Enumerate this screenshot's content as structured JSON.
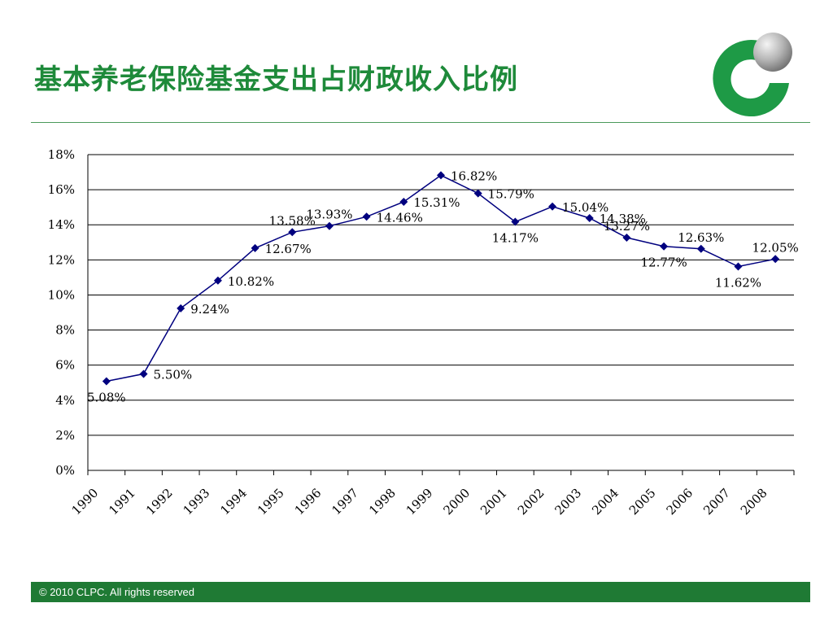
{
  "page": {
    "title": "基本养老保险基金支出占财政收入比例",
    "footer": "© 2010 CLPC. All rights reserved"
  },
  "logo": {
    "name": "clpc-logo",
    "color_green": "#1e9a46",
    "color_ball": "#9a9a9a"
  },
  "colors": {
    "line": "#00007f",
    "marker": "#00007f",
    "grid": "#000000",
    "title": "#1e8a3a",
    "footer_bg": "#1f7a34"
  },
  "chart_data": {
    "type": "line",
    "title": "",
    "xlabel": "",
    "ylabel": "",
    "categories": [
      "1990",
      "1991",
      "1992",
      "1993",
      "1994",
      "1995",
      "1996",
      "1997",
      "1998",
      "1999",
      "2000",
      "2001",
      "2002",
      "2003",
      "2004",
      "2005",
      "2006",
      "2007",
      "2008"
    ],
    "values": [
      5.08,
      5.5,
      9.24,
      10.82,
      12.67,
      13.58,
      13.93,
      14.46,
      15.31,
      16.82,
      15.79,
      14.17,
      15.04,
      14.38,
      13.27,
      12.77,
      12.63,
      11.62,
      12.05
    ],
    "data_labels": [
      "5.08%",
      "5.50%",
      "9.24%",
      "10.82%",
      "12.67%",
      "13.58%",
      "13.93%",
      "14.46%",
      "15.31%",
      "16.82%",
      "15.79%",
      "14.17%",
      "15.04%",
      "14.38%",
      "13.27%",
      "12.77%",
      "12.63%",
      "11.62%",
      "12.05%"
    ],
    "label_positions": [
      "below",
      "right",
      "right",
      "right",
      "right",
      "above",
      "above",
      "right",
      "right",
      "right",
      "right",
      "below",
      "right",
      "right",
      "above",
      "below",
      "above",
      "below",
      "above"
    ],
    "y_ticks": [
      0,
      2,
      4,
      6,
      8,
      10,
      12,
      14,
      16,
      18
    ],
    "y_tick_labels": [
      "0%",
      "2%",
      "4%",
      "6%",
      "8%",
      "10%",
      "12%",
      "14%",
      "16%",
      "18%"
    ],
    "ylim": [
      0,
      18
    ],
    "grid": true,
    "legend": "none",
    "marker": "diamond"
  }
}
